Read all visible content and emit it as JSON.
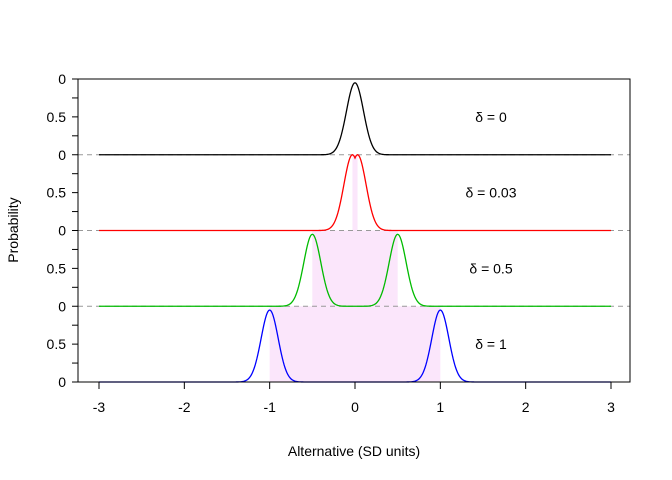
{
  "chart_data": {
    "type": "line",
    "xlabel": "Alternative (SD units)",
    "ylabel": "Probability",
    "xlim": [
      -3,
      3
    ],
    "x_ticks": [
      "-3",
      "-2",
      "-1",
      "0",
      "1",
      "2",
      "3"
    ],
    "y_tick_labels": [
      "0",
      "0.5",
      "0"
    ],
    "grid": false,
    "panels": [
      {
        "label": "δ = 0",
        "color": "#000000",
        "peaks": [
          0
        ],
        "sd": 0.1,
        "peak_height": 0.95,
        "shade": []
      },
      {
        "label": "δ = 0.03",
        "color": "#ff0000",
        "peaks": [
          -0.03,
          0.03
        ],
        "sd": 0.1,
        "peak_height": 1.0,
        "shade": [
          [
            -0.03,
            0.03
          ]
        ]
      },
      {
        "label": "δ = 0.5",
        "color": "#00bb00",
        "peaks": [
          -0.5,
          0.5
        ],
        "sd": 0.1,
        "peak_height": 0.95,
        "shade": [
          [
            -0.5,
            0.5
          ]
        ]
      },
      {
        "label": "δ = 1",
        "color": "#0000ff",
        "peaks": [
          -1,
          1
        ],
        "sd": 0.1,
        "peak_height": 0.95,
        "shade": [
          [
            -1,
            1
          ]
        ]
      }
    ],
    "shade_color": "#fbe6fb"
  }
}
